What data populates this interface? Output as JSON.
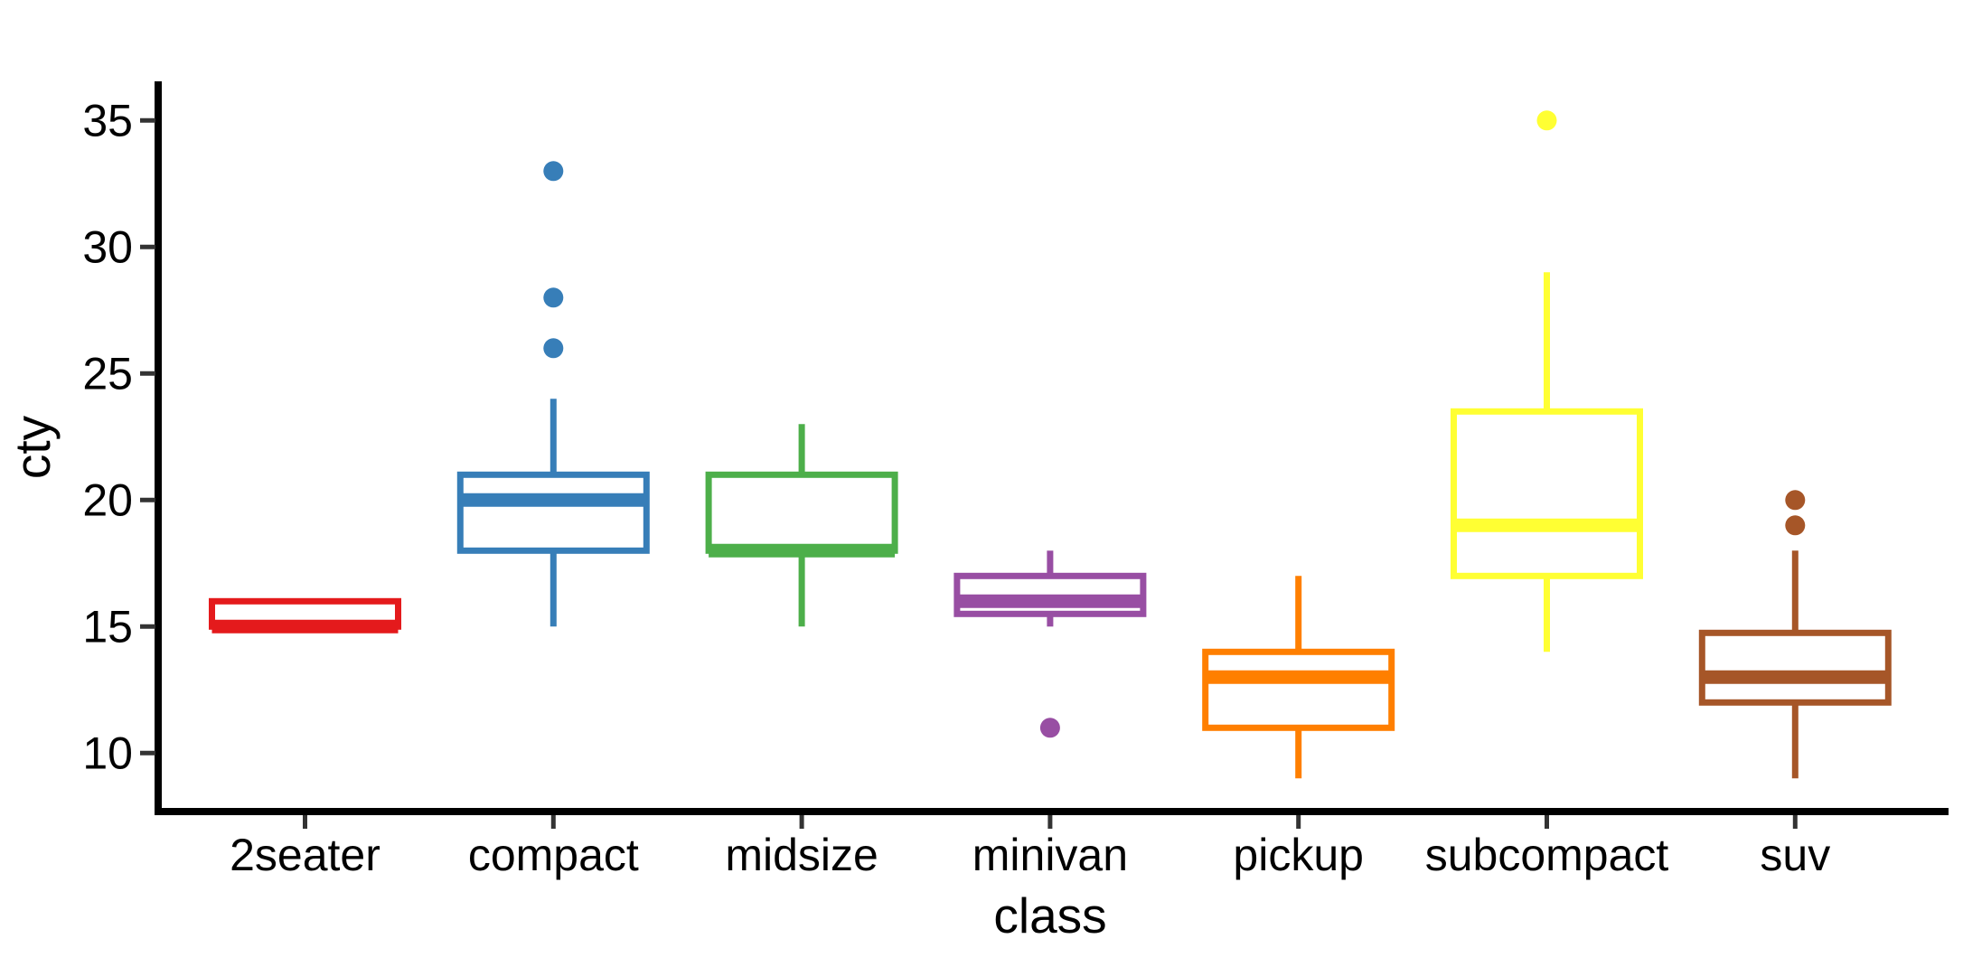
{
  "chart_data": {
    "type": "boxplot",
    "title": "",
    "xlabel": "class",
    "ylabel": "cty",
    "categories": [
      "2seater",
      "compact",
      "midsize",
      "minivan",
      "pickup",
      "subcompact",
      "suv"
    ],
    "y_ticks": [
      10,
      15,
      20,
      25,
      30,
      35
    ],
    "ylim": [
      7.7,
      36.3
    ],
    "grid": false,
    "legend": "none",
    "axis_color": "#000000",
    "tick_color": "#333333",
    "box_fill": "#ffffff",
    "series": [
      {
        "category": "2seater",
        "color": "#E41A1C",
        "whisker_low": 15,
        "q1": 15,
        "median": 15,
        "q3": 16,
        "whisker_high": 16,
        "outliers": []
      },
      {
        "category": "compact",
        "color": "#377EB8",
        "whisker_low": 15,
        "q1": 18,
        "median": 20,
        "q3": 21,
        "whisker_high": 24,
        "outliers": [
          26,
          28,
          33
        ]
      },
      {
        "category": "midsize",
        "color": "#4DAF4A",
        "whisker_low": 15,
        "q1": 18,
        "median": 18,
        "q3": 21,
        "whisker_high": 23,
        "outliers": []
      },
      {
        "category": "minivan",
        "color": "#984EA3",
        "whisker_low": 15,
        "q1": 15.5,
        "median": 16,
        "q3": 17,
        "whisker_high": 18,
        "outliers": [
          11
        ]
      },
      {
        "category": "pickup",
        "color": "#FF7F00",
        "whisker_low": 9,
        "q1": 11,
        "median": 13,
        "q3": 14,
        "whisker_high": 17,
        "outliers": []
      },
      {
        "category": "subcompact",
        "color": "#FFFF33",
        "whisker_low": 14,
        "q1": 17,
        "median": 19,
        "q3": 23.5,
        "whisker_high": 29,
        "outliers": [
          35
        ]
      },
      {
        "category": "suv",
        "color": "#A65628",
        "whisker_low": 9,
        "q1": 12,
        "median": 13,
        "q3": 14.75,
        "whisker_high": 18,
        "outliers": [
          19,
          20
        ]
      }
    ]
  }
}
